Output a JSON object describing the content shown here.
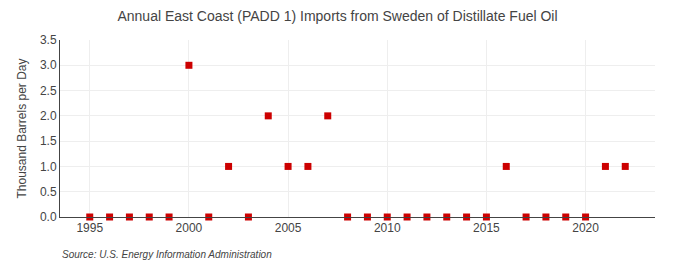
{
  "chart_data": {
    "type": "scatter",
    "title": "Annual East Coast (PADD 1) Imports from Sweden of Distillate Fuel Oil",
    "y_label": "Thousand Barrels per Day",
    "annotations": [
      "Source: U.S. Energy Information Administration"
    ],
    "x": [
      1995,
      1996,
      1997,
      1998,
      1999,
      2000,
      2001,
      2002,
      2003,
      2004,
      2005,
      2006,
      2007,
      2008,
      2009,
      2010,
      2011,
      2012,
      2013,
      2014,
      2015,
      2016,
      2017,
      2018,
      2019,
      2020,
      2021,
      2022
    ],
    "values": [
      0,
      0,
      0,
      0,
      0,
      3,
      0,
      1,
      0,
      2,
      1,
      1,
      2,
      0,
      0,
      0,
      0,
      0,
      0,
      0,
      0,
      1,
      0,
      0,
      0,
      0,
      1,
      1
    ],
    "color": "#cc0000",
    "marker": "square",
    "xlim": [
      1993.5,
      2023.5
    ],
    "xticks": [
      1995,
      2000,
      2005,
      2010,
      2015,
      2020
    ],
    "ylim": [
      0,
      3.5
    ],
    "yticks": [
      {
        "value": 0.0,
        "label": "0.0"
      },
      {
        "value": 0.5,
        "label": "0.5"
      },
      {
        "value": 1.0,
        "label": "1.0"
      },
      {
        "value": 1.5,
        "label": "1.5"
      },
      {
        "value": 2.0,
        "label": "2.0"
      },
      {
        "value": 2.5,
        "label": "2.5"
      },
      {
        "value": 3.0,
        "label": "3.0"
      },
      {
        "value": 3.5,
        "label": "3.5"
      }
    ],
    "grid": true
  }
}
